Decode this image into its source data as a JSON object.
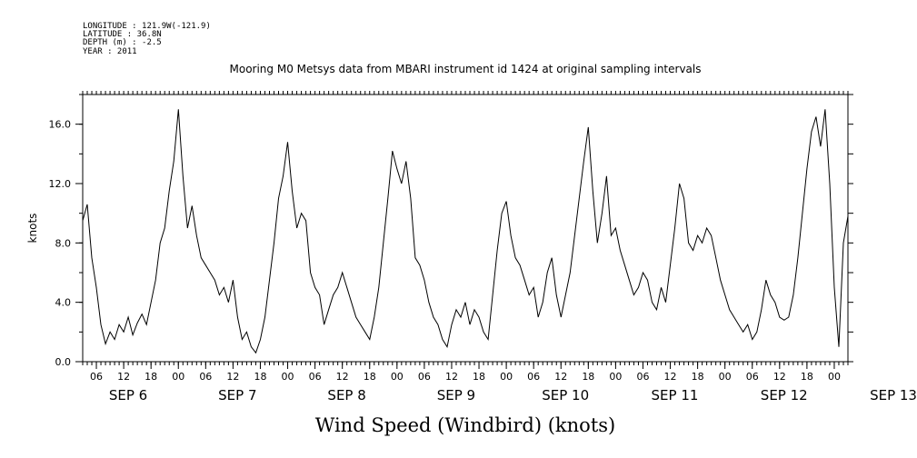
{
  "header": {
    "longitude": "LONGITUDE : 121.9W(-121.9)",
    "latitude": "LATITUDE : 36.8N",
    "depth": "DEPTH (m) : -2.5",
    "year": "YEAR : 2011"
  },
  "chart_data": {
    "type": "line",
    "title": "Mooring M0 Metsys data from MBARI instrument id 1424 at original sampling intervals",
    "xlabel": "Wind Speed (Windbird) (knots)",
    "ylabel": "knots",
    "ylim": [
      0,
      18
    ],
    "xlim_hours": [
      3,
      171
    ],
    "yticks": [
      {
        "value": 0,
        "label": "0.0"
      },
      {
        "value": 4,
        "label": "4.0"
      },
      {
        "value": 8,
        "label": "8.0"
      },
      {
        "value": 12,
        "label": "12.0"
      },
      {
        "value": 16,
        "label": "16.0"
      }
    ],
    "hour_ticks": [
      "06",
      "12",
      "18",
      "00",
      "06",
      "12",
      "18",
      "00",
      "06",
      "12",
      "18",
      "00",
      "06",
      "12",
      "18",
      "00",
      "06",
      "12",
      "18",
      "00",
      "06",
      "12",
      "18",
      "00",
      "06",
      "12",
      "18",
      "00"
    ],
    "day_labels": [
      "SEP  6",
      "SEP  7",
      "SEP  8",
      "SEP  9",
      "SEP 10",
      "SEP 11",
      "SEP 12",
      "SEP 13"
    ],
    "grid": false,
    "series": [
      {
        "x": [
          3,
          4,
          5,
          6,
          7,
          8,
          9,
          10,
          11,
          12,
          13,
          14,
          15,
          16,
          17,
          18,
          19,
          20,
          21,
          22,
          23,
          24,
          25,
          26,
          27,
          28,
          29,
          30,
          31,
          32,
          33,
          34,
          35,
          36,
          37,
          38,
          39,
          40,
          41,
          42,
          43,
          44,
          45,
          46,
          47,
          48,
          49,
          50,
          51,
          52,
          53,
          54,
          55,
          56,
          57,
          58,
          59,
          60,
          61,
          62,
          63,
          64,
          65,
          66,
          67,
          68,
          69,
          70,
          71,
          72,
          73,
          74,
          75,
          76,
          77,
          78,
          79,
          80,
          81,
          82,
          83,
          84,
          85,
          86,
          87,
          88,
          89,
          90,
          91,
          92,
          93,
          94,
          95,
          96,
          97,
          98,
          99,
          100,
          101,
          102,
          103,
          104,
          105,
          106,
          107,
          108,
          109,
          110,
          111,
          112,
          113,
          114,
          115,
          116,
          117,
          118,
          119,
          120,
          121,
          122,
          123,
          124,
          125,
          126,
          127,
          128,
          129,
          130,
          131,
          132,
          133,
          134,
          135,
          136,
          137,
          138,
          139,
          140,
          141,
          142,
          143,
          144,
          145,
          146,
          147,
          148,
          149,
          150,
          151,
          152,
          153,
          154,
          155,
          156,
          157,
          158,
          159,
          160,
          161,
          162,
          163,
          164,
          165,
          166,
          167,
          168,
          169,
          170,
          171
        ],
        "y": [
          9.5,
          10.6,
          7.0,
          5.0,
          2.5,
          1.2,
          2.0,
          1.5,
          2.5,
          2.0,
          3.0,
          1.8,
          2.6,
          3.2,
          2.5,
          4.0,
          5.5,
          8.0,
          9.0,
          11.5,
          13.5,
          17.0,
          12.5,
          9.0,
          10.5,
          8.5,
          7.0,
          6.5,
          6.0,
          5.5,
          4.5,
          5.0,
          4.0,
          5.5,
          3.0,
          1.5,
          2.0,
          1.0,
          0.6,
          1.5,
          3.0,
          5.5,
          8.0,
          11.0,
          12.5,
          14.8,
          11.5,
          9.0,
          10.0,
          9.5,
          6.0,
          5.0,
          4.5,
          2.5,
          3.5,
          4.5,
          5.0,
          6.0,
          5.0,
          4.0,
          3.0,
          2.5,
          2.0,
          1.5,
          3.0,
          5.0,
          8.0,
          11.0,
          14.2,
          13.0,
          12.0,
          13.5,
          11.0,
          7.0,
          6.5,
          5.5,
          4.0,
          3.0,
          2.5,
          1.5,
          1.0,
          2.5,
          3.5,
          3.0,
          4.0,
          2.5,
          3.5,
          3.0,
          2.0,
          1.5,
          4.5,
          7.5,
          10.0,
          10.8,
          8.5,
          7.0,
          6.5,
          5.5,
          4.5,
          5.0,
          3.0,
          4.0,
          6.0,
          7.0,
          4.5,
          3.0,
          4.5,
          6.0,
          8.5,
          11.0,
          13.5,
          15.8,
          11.5,
          8.0,
          10.0,
          12.5,
          8.5,
          9.0,
          7.5,
          6.5,
          5.5,
          4.5,
          5.0,
          6.0,
          5.5,
          4.0,
          3.5,
          5.0,
          4.0,
          6.5,
          9.0,
          12.0,
          11.0,
          8.0,
          7.5,
          8.5,
          8.0,
          9.0,
          8.5,
          7.0,
          5.5,
          4.5,
          3.5,
          3.0,
          2.5,
          2.0,
          2.5,
          1.5,
          2.0,
          3.5,
          5.5,
          4.5,
          4.0,
          3.0,
          2.8,
          3.0,
          4.5,
          7.0,
          10.0,
          13.0,
          15.5,
          16.5,
          14.5,
          17.0,
          12.0,
          5.0,
          1.0,
          8.0,
          9.8
        ]
      }
    ]
  }
}
